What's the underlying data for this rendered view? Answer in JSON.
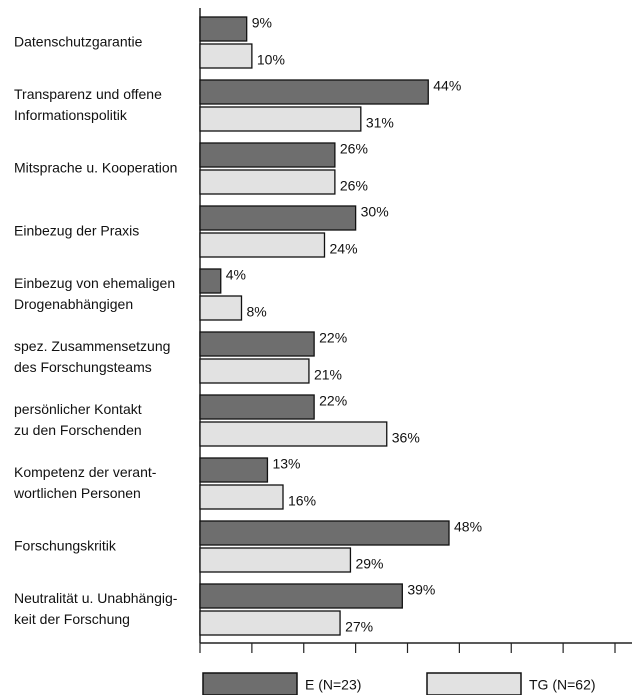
{
  "chart_data": {
    "type": "bar",
    "orientation": "horizontal",
    "categories": [
      "Datenschutzgarantie",
      "Transparenz und offene\nInformationspolitik",
      "Mitsprache u. Kooperation",
      "Einbezug der Praxis",
      "Einbezug von ehemaligen\nDrogenabhängigen",
      "spez. Zusammensetzung\ndes Forschungsteams",
      "persönlicher Kontakt\nzu den Forschenden",
      "Kompetenz der verant-\nwortlichen Personen",
      "Forschungskritik",
      "Neutralität u. Unabhängig-\nkeit der Forschung"
    ],
    "series": [
      {
        "name": "E (N=23)",
        "color": "#6e6e6e",
        "values": [
          9,
          44,
          26,
          30,
          4,
          22,
          22,
          13,
          48,
          39
        ],
        "value_labels": [
          "9%",
          "44%",
          "26%",
          "30%",
          "4%",
          "22%",
          "22%",
          "13%",
          "48%",
          "39%"
        ]
      },
      {
        "name": "TG (N=62)",
        "color": "#e2e2e2",
        "values": [
          10,
          31,
          26,
          24,
          8,
          21,
          36,
          16,
          29,
          27
        ],
        "value_labels": [
          "10%",
          "31%",
          "26%",
          "24%",
          "8%",
          "21%",
          "36%",
          "16%",
          "29%",
          "27%"
        ]
      }
    ],
    "xlim": [
      0,
      80
    ],
    "xticks": [
      0,
      10,
      20,
      30,
      40,
      50,
      60,
      70,
      80
    ],
    "legend": "bottom"
  }
}
